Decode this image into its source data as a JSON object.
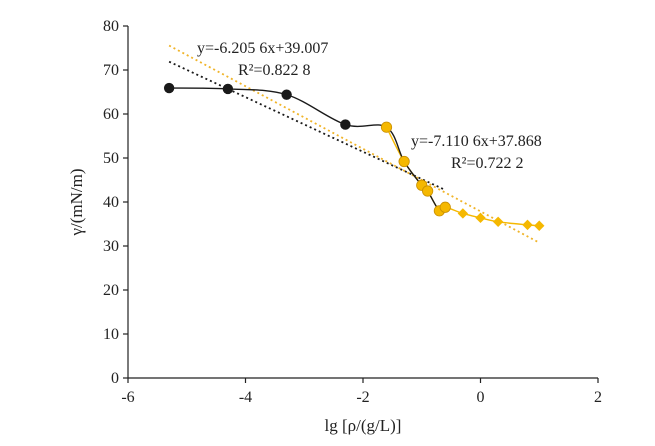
{
  "chart_data": {
    "type": "scatter",
    "xlabel": "lg [ρ/(g/L)]",
    "ylabel": "γ/(mN/m)",
    "xlim": [
      -6,
      2
    ],
    "ylim": [
      0,
      80
    ],
    "xticks": [
      "-6",
      "-4",
      "-2",
      "0",
      "2"
    ],
    "yticks": [
      "0",
      "10",
      "20",
      "30",
      "40",
      "50",
      "60",
      "70",
      "80"
    ],
    "grid": false,
    "colors": {
      "black_series": "#1a1a1a",
      "yellow_series": "#f5b800",
      "black_fit": "#1a1a1a",
      "yellow_fit": "#f0b429",
      "marker_edge": "#c98f00"
    },
    "series": [
      {
        "marker": "circle",
        "color": "#1a1a1a",
        "x": [
          -5.3,
          -4.3,
          -3.3,
          -2.3,
          -1.6,
          -1.3,
          -1.0,
          -0.9,
          -0.7,
          -0.6
        ],
        "y": [
          65.9,
          65.7,
          64.4,
          57.6,
          57.0,
          49.2,
          43.8,
          42.5,
          38.0,
          38.8
        ]
      },
      {
        "marker": "diamond",
        "color": "#f5b800",
        "x": [
          -1.6,
          -1.3,
          -1.0,
          -0.9,
          -0.7,
          -0.6,
          -0.3,
          0.0,
          0.3,
          0.8,
          1.0
        ],
        "y": [
          57.0,
          49.2,
          43.8,
          42.5,
          38.0,
          38.8,
          37.4,
          36.4,
          35.5,
          34.8,
          34.6
        ]
      }
    ],
    "fits": [
      {
        "color": "#1a1a1a",
        "slope": -6.2056,
        "intercept": 39.007,
        "x_range": [
          -5.3,
          -0.6
        ],
        "equation": "y=-6.205 6x+39.007",
        "r2": "R²=0.822 8"
      },
      {
        "color": "#f0b429",
        "slope": -7.1106,
        "intercept": 37.868,
        "x_range": [
          -5.3,
          1.0
        ],
        "equation": "y=-7.110 6x+37.868",
        "r2": "R²=0.722 2"
      }
    ]
  }
}
